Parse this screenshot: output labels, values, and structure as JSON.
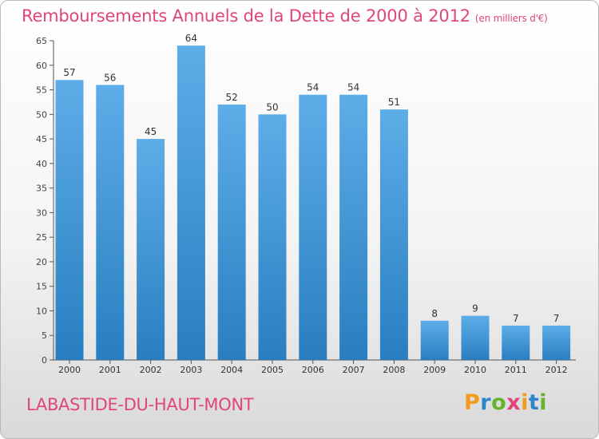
{
  "chart_data": {
    "type": "bar",
    "title": "Remboursements Annuels de la Dette de 2000 à 2012",
    "unit_label": "(en milliers d'€)",
    "categories": [
      "2000",
      "2001",
      "2002",
      "2003",
      "2004",
      "2005",
      "2006",
      "2007",
      "2008",
      "2009",
      "2010",
      "2011",
      "2012"
    ],
    "values": [
      57,
      56,
      45,
      64,
      52,
      50,
      54,
      54,
      51,
      8,
      9,
      7,
      7
    ],
    "ylim": [
      0,
      65
    ],
    "yticks": [
      0,
      5,
      10,
      15,
      20,
      25,
      30,
      35,
      40,
      45,
      50,
      55,
      60,
      65
    ],
    "grid": false,
    "bar_color_top": "#5dade8",
    "bar_color_bottom": "#2a7ec0"
  },
  "place_name": "LABASTIDE-DU-HAUT-MONT",
  "logo": {
    "letters": [
      "P",
      "r",
      "o",
      "x",
      "i",
      "t",
      "i"
    ],
    "colors": [
      "#f29c1f",
      "#2e86c9",
      "#65b32e",
      "#e0457b",
      "#f29c1f",
      "#2e86c9",
      "#65b32e"
    ]
  }
}
